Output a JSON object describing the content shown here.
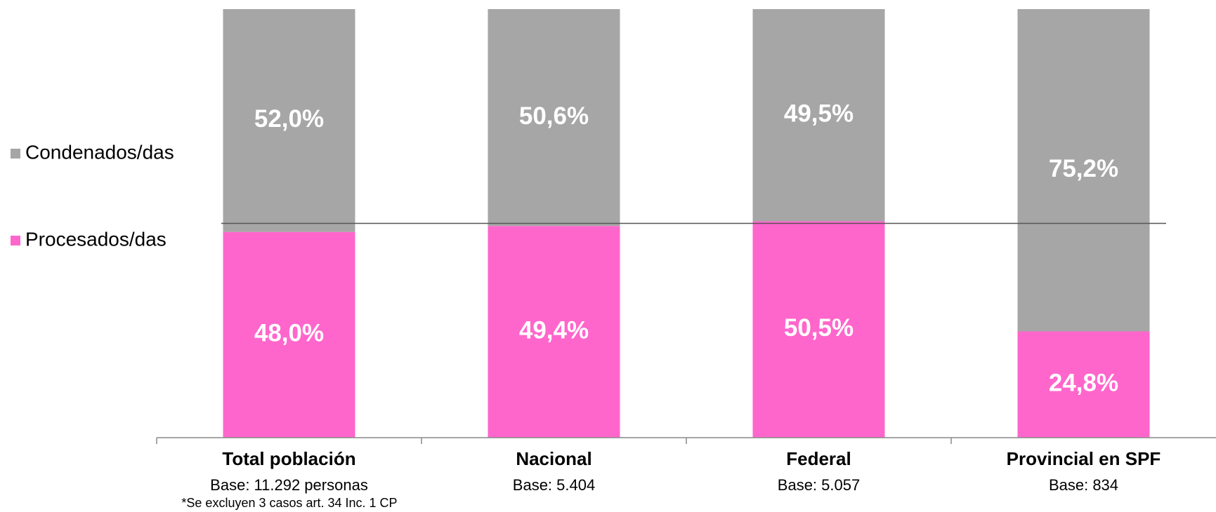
{
  "chart_data": {
    "type": "stacked_bar",
    "categories": [
      "Total población",
      "Nacional",
      "Federal",
      "Provincial en SPF"
    ],
    "bases": [
      "Base: 11.292 personas",
      "Base: 5.404",
      "Base: 5.057",
      "Base: 834"
    ],
    "footnote": "*Se excluyen 3 casos art. 34 Inc. 1 CP",
    "series": [
      {
        "name": "Procesados/das",
        "color": "#FF66CC",
        "values": [
          48.0,
          49.4,
          50.5,
          24.8
        ],
        "value_labels": [
          "48,0%",
          "49,4%",
          "50,5%",
          "24,8%"
        ]
      },
      {
        "name": "Condenados/das",
        "color": "#A6A6A6",
        "values": [
          52.0,
          50.6,
          49.5,
          75.2
        ],
        "value_labels": [
          "52,0%",
          "50,6%",
          "49,5%",
          "75,2%"
        ]
      }
    ],
    "ylim": [
      0,
      100
    ],
    "reference_line": 50
  }
}
